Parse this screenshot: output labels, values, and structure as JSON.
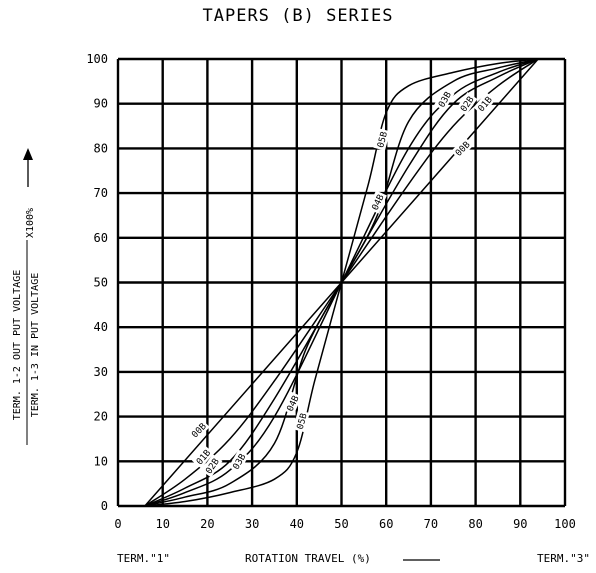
{
  "chart_data": {
    "type": "line",
    "title": "TAPERS (B) SERIES",
    "xlabel": "ROTATION TRAVEL (%)",
    "ylabel_top": "TERM. 1-2 OUT PUT VOLTAGE",
    "ylabel_bottom": "TERM. 1-3 IN PUT VOLTAGE",
    "ylabel_multiplier": "X100%",
    "xlim": [
      0,
      100
    ],
    "ylim": [
      0,
      100
    ],
    "xticks": [
      0,
      10,
      20,
      30,
      40,
      50,
      60,
      70,
      80,
      90,
      100
    ],
    "yticks": [
      0,
      10,
      20,
      30,
      40,
      50,
      60,
      70,
      80,
      90,
      100
    ],
    "grid": true,
    "term_left": "TERM.\"1\"",
    "term_right": "TERM.\"3\"",
    "series": [
      {
        "name": "00B",
        "x": [
          6,
          50,
          94
        ],
        "y": [
          0,
          50,
          100
        ]
      },
      {
        "name": "01B",
        "x": [
          6,
          15,
          25,
          35,
          50,
          65,
          75,
          85,
          94
        ],
        "y": [
          0,
          6,
          15,
          28,
          50,
          72,
          85,
          94,
          100
        ]
      },
      {
        "name": "02B",
        "x": [
          6,
          15,
          25,
          35,
          50,
          65,
          75,
          85,
          94
        ],
        "y": [
          0,
          4,
          10,
          24,
          50,
          76,
          90,
          96,
          100
        ]
      },
      {
        "name": "03B",
        "x": [
          6,
          15,
          25,
          35,
          50,
          65,
          75,
          85,
          94
        ],
        "y": [
          0,
          3,
          8,
          20,
          50,
          80,
          92,
          97,
          100
        ]
      },
      {
        "name": "04B",
        "x": [
          6,
          15,
          25,
          35,
          42,
          50,
          58,
          65,
          75,
          85,
          94
        ],
        "y": [
          0,
          2,
          5,
          14,
          35,
          50,
          65,
          86,
          95,
          98,
          100
        ]
      },
      {
        "name": "05B",
        "x": [
          6,
          15,
          25,
          35,
          40,
          44,
          50,
          56,
          60,
          65,
          75,
          85,
          94
        ],
        "y": [
          0,
          1,
          3,
          6,
          12,
          28,
          50,
          72,
          88,
          94,
          97,
          99,
          100
        ]
      }
    ],
    "series_labels": [
      {
        "name": "00B",
        "x": 18,
        "y": 17,
        "angle": -46
      },
      {
        "name": "01B",
        "x": 19,
        "y": 11,
        "angle": -50
      },
      {
        "name": "02B",
        "x": 21,
        "y": 9,
        "angle": -55
      },
      {
        "name": "03B",
        "x": 27,
        "y": 10,
        "angle": -60
      },
      {
        "name": "04B",
        "x": 39,
        "y": 23,
        "angle": -65
      },
      {
        "name": "05B",
        "x": 41,
        "y": 19,
        "angle": -75
      },
      {
        "name": "04B",
        "x": 58,
        "y": 68,
        "angle": -65
      },
      {
        "name": "05B",
        "x": 59,
        "y": 82,
        "angle": -75
      },
      {
        "name": "03B",
        "x": 73,
        "y": 91,
        "angle": -60
      },
      {
        "name": "02B",
        "x": 78,
        "y": 90,
        "angle": -55
      },
      {
        "name": "01B",
        "x": 82,
        "y": 90,
        "angle": -50
      },
      {
        "name": "00B",
        "x": 77,
        "y": 80,
        "angle": -46
      }
    ]
  }
}
